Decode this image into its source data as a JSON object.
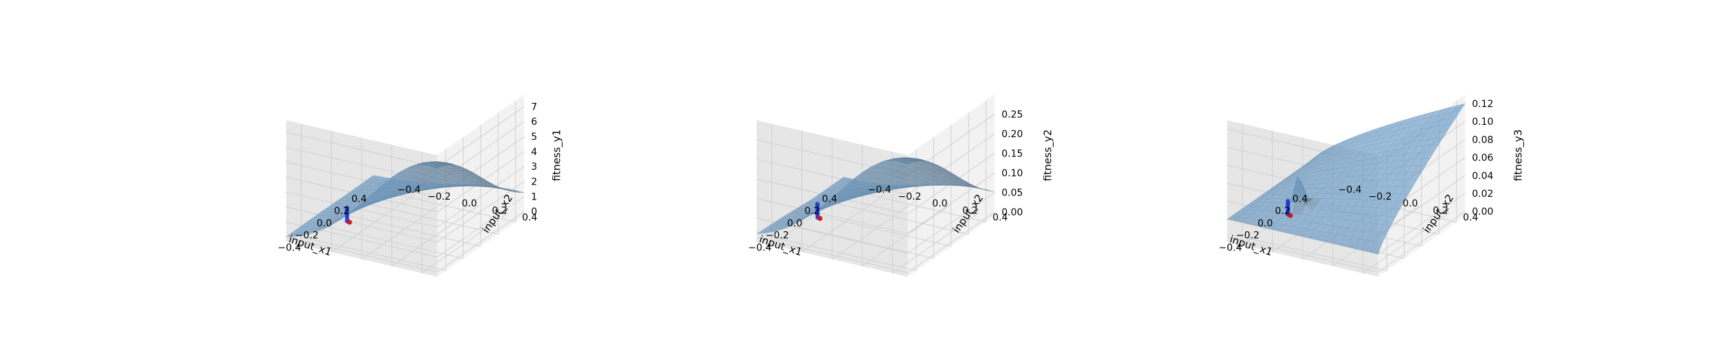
{
  "chart_data": [
    {
      "type": "surface3d",
      "xlabel": "input_x1",
      "ylabel": "input_x2",
      "zlabel": "fitness_y1",
      "x_ticks": [
        "−0.4",
        "−0.2",
        "0.0",
        "0.2",
        "0.4"
      ],
      "y_ticks": [
        "−0.4",
        "−0.2",
        "0.0",
        "0.2",
        "0.4"
      ],
      "z_ticks": [
        "0",
        "1",
        "2",
        "3",
        "4",
        "5",
        "6",
        "7"
      ],
      "xlim": [
        -0.5,
        0.5
      ],
      "ylim": [
        -0.5,
        0.5
      ],
      "zlim": [
        -0.3,
        7.8
      ],
      "grid": true,
      "surface_color": "#4f86b8",
      "markers": [
        {
          "color": "#1a2ecc",
          "label": "blue points"
        },
        {
          "color": "#d11b1b",
          "label": "red point"
        }
      ]
    },
    {
      "type": "surface3d",
      "xlabel": "input_x1",
      "ylabel": "input_x2",
      "zlabel": "fitness_y2",
      "x_ticks": [
        "−0.4",
        "−0.2",
        "0.0",
        "0.2",
        "0.4"
      ],
      "y_ticks": [
        "−0.4",
        "−0.2",
        "0.0",
        "0.2",
        "0.4"
      ],
      "z_ticks": [
        "0.00",
        "0.05",
        "0.10",
        "0.15",
        "0.20",
        "0.25"
      ],
      "xlim": [
        -0.5,
        0.5
      ],
      "ylim": [
        -0.5,
        0.5
      ],
      "zlim": [
        -0.01,
        0.3
      ],
      "grid": true,
      "surface_color": "#4f86b8",
      "markers": [
        {
          "color": "#1a2ecc",
          "label": "blue points"
        },
        {
          "color": "#d11b1b",
          "label": "red point"
        }
      ]
    },
    {
      "type": "surface3d",
      "xlabel": "input_x1",
      "ylabel": "input_x2",
      "zlabel": "fitness_y3",
      "x_ticks": [
        "−0.4",
        "−0.2",
        "0.0",
        "0.2",
        "0.4"
      ],
      "y_ticks": [
        "−0.4",
        "−0.2",
        "0.0",
        "0.2",
        "0.4"
      ],
      "z_ticks": [
        "0.00",
        "0.02",
        "0.04",
        "0.06",
        "0.08",
        "0.10",
        "0.12"
      ],
      "xlim": [
        -0.5,
        0.5
      ],
      "ylim": [
        -0.5,
        0.5
      ],
      "zlim": [
        -0.005,
        0.13
      ],
      "grid": true,
      "surface_color": "#4f86b8",
      "markers": [
        {
          "color": "#1a2ecc",
          "label": "blue points"
        },
        {
          "color": "#d11b1b",
          "label": "red point"
        }
      ]
    }
  ]
}
